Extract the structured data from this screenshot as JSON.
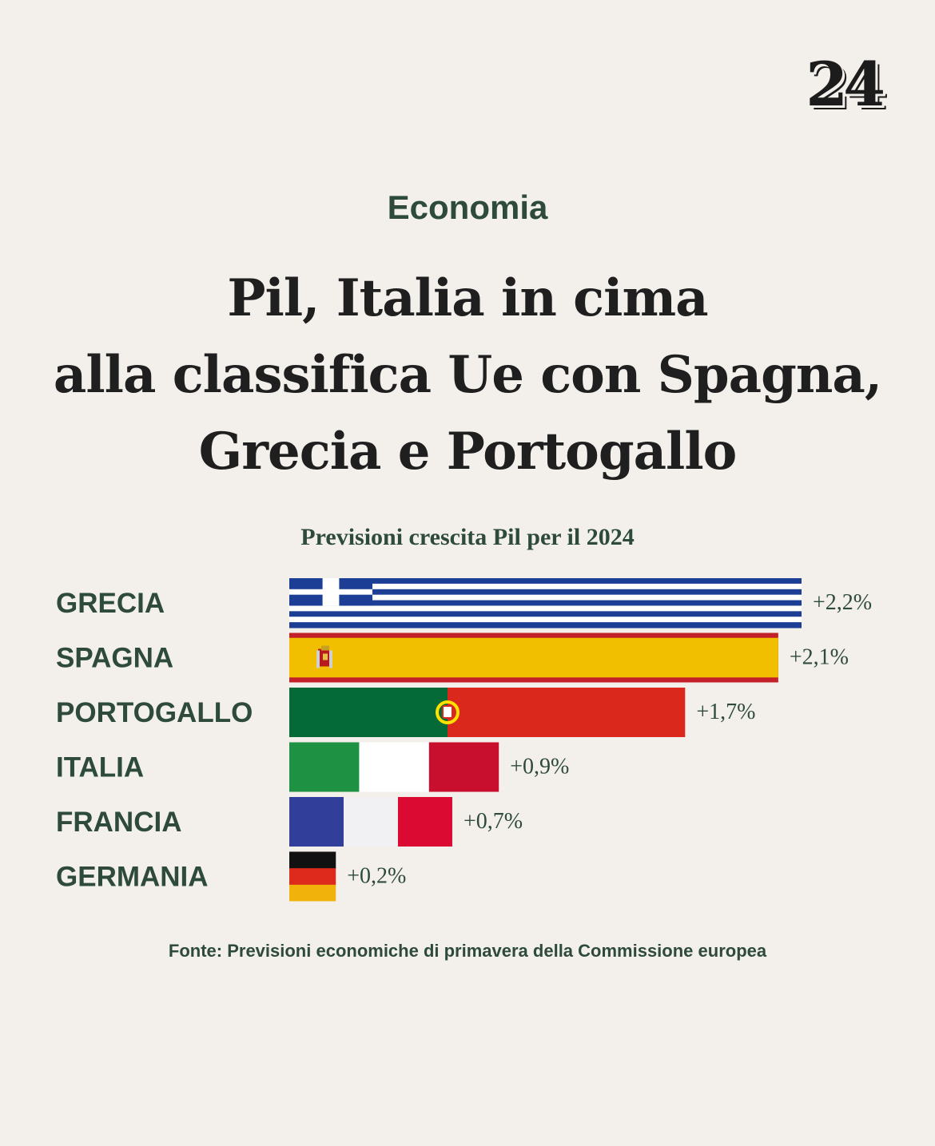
{
  "logo": "24",
  "section": "Economia",
  "headline": [
    "Pil, Italia in cima",
    "alla classifica Ue con Spagna,",
    "Grecia e Portogallo"
  ],
  "source": "Fonte: Previsioni economiche di primavera della Commissione europea",
  "colors": {
    "text_dark": "#2e4a3a",
    "background": "#f3f0ec"
  },
  "chart_data": {
    "type": "bar",
    "orientation": "horizontal",
    "title": "Previsioni crescita Pil per il 2024",
    "xlabel": "",
    "ylabel": "",
    "grid": false,
    "xlim": [
      0,
      2.2
    ],
    "categories": [
      "GRECIA",
      "SPAGNA",
      "PORTOGALLO",
      "ITALIA",
      "FRANCIA",
      "GERMANIA"
    ],
    "values": [
      2.2,
      2.1,
      1.7,
      0.9,
      0.7,
      0.2
    ],
    "value_labels": [
      "+2,2%",
      "+2,1%",
      "+1,7%",
      "+0,9%",
      "+0,7%",
      "+0,2%"
    ],
    "bar_fill": [
      "flag-greece",
      "flag-spain",
      "flag-portugal",
      "flag-italy",
      "flag-france",
      "flag-germany"
    ]
  }
}
